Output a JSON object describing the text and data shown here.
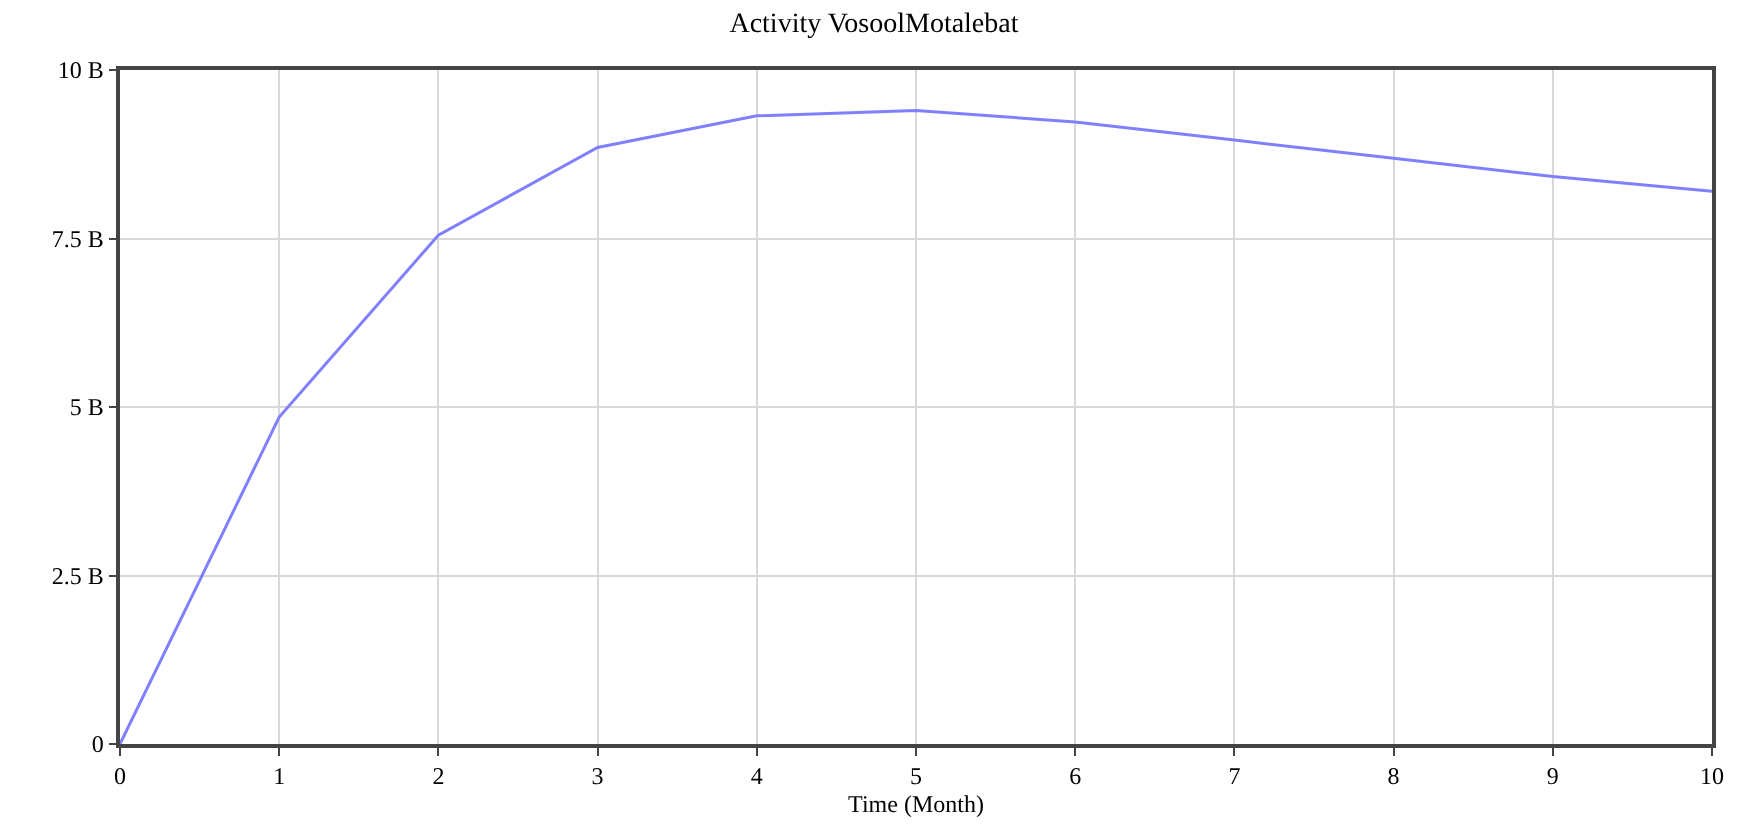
{
  "chart_data": {
    "type": "line",
    "title": "Activity VosoolMotalebat",
    "xlabel": "Time (Month)",
    "x": [
      0,
      1,
      2,
      3,
      4,
      5,
      6,
      7,
      8,
      9,
      10
    ],
    "series": [
      {
        "color": "#8080ff",
        "values": [
          0,
          4.85,
          7.55,
          8.85,
          9.32,
          9.4,
          9.23,
          8.96,
          8.69,
          8.42,
          8.2
        ]
      }
    ],
    "xlim": [
      0,
      10
    ],
    "xticks": [
      0,
      1,
      2,
      3,
      4,
      5,
      6,
      7,
      8,
      9,
      10
    ],
    "ylim": [
      0,
      10
    ],
    "yticks": [
      0,
      {
        "value": 2.5,
        "label": "2.5 B"
      },
      {
        "value": 5,
        "label": "5 B"
      },
      {
        "value": 7.5,
        "label": "7.5 B"
      },
      {
        "value": 10,
        "label": "10 B"
      }
    ],
    "grid": true,
    "marker": "none",
    "line_style": "solid"
  }
}
